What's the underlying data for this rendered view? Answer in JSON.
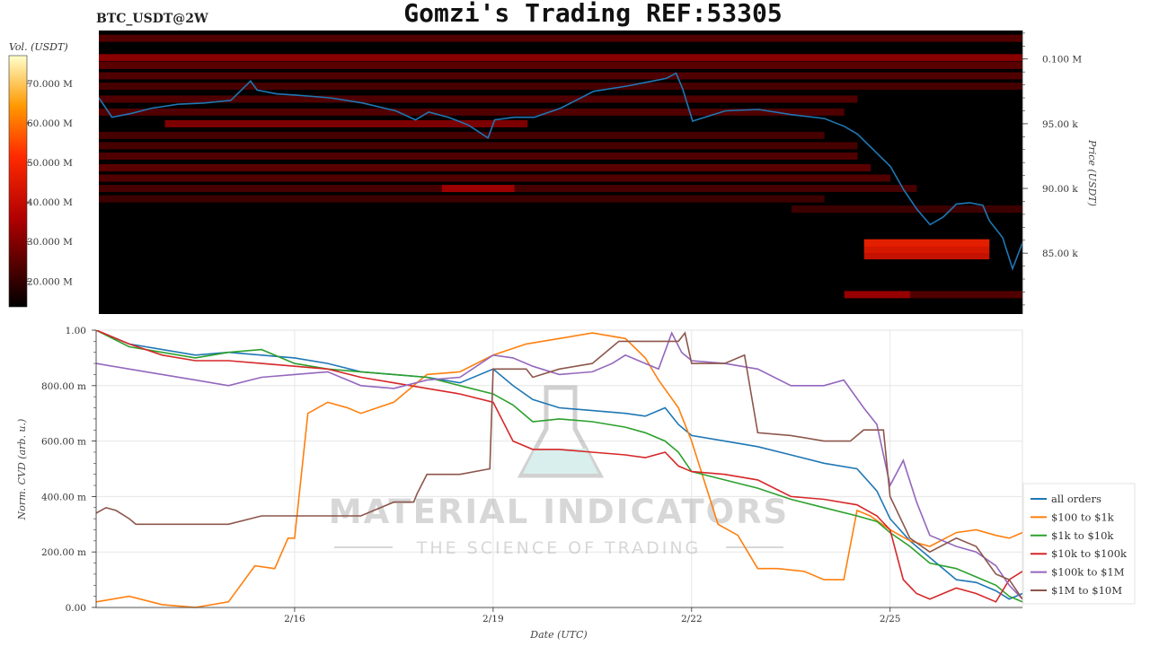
{
  "header": {
    "symbol": "BTC_USDT@2W",
    "title": "Gomzi's Trading REF:53305"
  },
  "watermark": {
    "line1": "MATERIAL INDICATORS",
    "line2": "THE SCIENCE OF TRADING"
  },
  "colors": {
    "price_line": "#1f77b4",
    "all_orders": "#1f77b4",
    "usd100_1k": "#ff7f0e",
    "usd1k_10k": "#2ca02c",
    "usd10k_100k": "#d62728",
    "usd100k_1m": "#9467bd",
    "usd1m_10m": "#8c564b",
    "heatmap_background": "#000000"
  },
  "chart_data": [
    {
      "type": "heatmap",
      "ylabel": "Price (USDT)",
      "y_ticks": [
        {
          "value": 100000,
          "label": "0.100 M"
        },
        {
          "value": 95000,
          "label": "95.00 k"
        },
        {
          "value": 90000,
          "label": "90.00 k"
        },
        {
          "value": 85000,
          "label": "85.00 k"
        }
      ],
      "ylim": [
        80300,
        102200
      ],
      "colorbar": {
        "label": "Vol. (USDT)",
        "ticks": [
          "70.000 M",
          "60.000 M",
          "50.000 M",
          "40.000 M",
          "30.000 M",
          "20.000 M"
        ],
        "tick_values": [
          70,
          60,
          50,
          40,
          30,
          20
        ],
        "range": [
          13.5,
          77
        ]
      },
      "x_range_days": [
        13.0,
        27.0
      ],
      "price_series": {
        "name": "Price",
        "x": [
          13.0,
          13.2,
          13.5,
          13.8,
          14.2,
          14.6,
          15.0,
          15.3,
          15.4,
          15.7,
          16.0,
          16.5,
          17.0,
          17.5,
          17.8,
          18.0,
          18.3,
          18.6,
          18.9,
          19.0,
          19.3,
          19.6,
          20.0,
          20.5,
          21.0,
          21.3,
          21.6,
          21.75,
          21.85,
          22.0,
          22.5,
          23.0,
          23.5,
          24.0,
          24.3,
          24.5,
          24.7,
          25.0,
          25.2,
          25.4,
          25.6,
          25.8,
          26.0,
          26.2,
          26.4,
          26.5,
          26.7,
          26.85,
          27.0
        ],
        "y": [
          97000,
          95500,
          95800,
          96200,
          96500,
          96600,
          96800,
          98300,
          97600,
          97300,
          97200,
          97000,
          96600,
          96000,
          95300,
          95900,
          95500,
          94900,
          93900,
          95300,
          95500,
          95500,
          96200,
          97500,
          97900,
          98200,
          98500,
          98900,
          97700,
          95200,
          96000,
          96100,
          95700,
          95400,
          94800,
          94200,
          93200,
          91700,
          89900,
          88400,
          87200,
          87800,
          88800,
          88900,
          88700,
          87500,
          86200,
          83800,
          85800
        ]
      },
      "bands": [
        {
          "x0": 13.0,
          "x1": 27.0,
          "price": 100100,
          "intensity": 0.55
        },
        {
          "x0": 13.0,
          "x1": 27.0,
          "price": 101600,
          "intensity": 0.3
        },
        {
          "x0": 13.0,
          "x1": 27.0,
          "price": 99500,
          "intensity": 0.35
        },
        {
          "x0": 13.0,
          "x1": 27.0,
          "price": 98700,
          "intensity": 0.3
        },
        {
          "x0": 13.0,
          "x1": 27.0,
          "price": 97900,
          "intensity": 0.25
        },
        {
          "x0": 13.0,
          "x1": 24.5,
          "price": 96900,
          "intensity": 0.3
        },
        {
          "x0": 13.0,
          "x1": 24.3,
          "price": 95900,
          "intensity": 0.3
        },
        {
          "x0": 14.0,
          "x1": 19.5,
          "price": 95000,
          "intensity": 0.5
        },
        {
          "x0": 13.0,
          "x1": 24.0,
          "price": 94100,
          "intensity": 0.25
        },
        {
          "x0": 13.0,
          "x1": 24.5,
          "price": 93300,
          "intensity": 0.25
        },
        {
          "x0": 13.0,
          "x1": 24.5,
          "price": 92500,
          "intensity": 0.3
        },
        {
          "x0": 13.0,
          "x1": 24.7,
          "price": 91600,
          "intensity": 0.35
        },
        {
          "x0": 13.0,
          "x1": 25.0,
          "price": 90800,
          "intensity": 0.3
        },
        {
          "x0": 13.0,
          "x1": 25.4,
          "price": 90000,
          "intensity": 0.25
        },
        {
          "x0": 18.2,
          "x1": 19.3,
          "price": 90000,
          "intensity": 0.55
        },
        {
          "x0": 13.0,
          "x1": 24.0,
          "price": 89200,
          "intensity": 0.2
        },
        {
          "x0": 23.5,
          "x1": 27.0,
          "price": 88400,
          "intensity": 0.2
        },
        {
          "x0": 24.6,
          "x1": 26.5,
          "price": 85800,
          "intensity": 0.85
        },
        {
          "x0": 24.6,
          "x1": 26.5,
          "price": 85300,
          "intensity": 0.8
        },
        {
          "x0": 24.6,
          "x1": 26.5,
          "price": 84800,
          "intensity": 0.75
        },
        {
          "x0": 24.3,
          "x1": 25.3,
          "price": 81800,
          "intensity": 0.6
        },
        {
          "x0": 25.3,
          "x1": 27.0,
          "price": 81800,
          "intensity": 0.3
        }
      ]
    },
    {
      "type": "line",
      "xlabel": "Date (UTC)",
      "ylabel": "Norm. CVD (arb. u.)",
      "ylim": [
        0,
        1
      ],
      "y_ticks": [
        {
          "value": 1.0,
          "label": "1.00"
        },
        {
          "value": 0.8,
          "label": "800.00 m"
        },
        {
          "value": 0.6,
          "label": "600.00 m"
        },
        {
          "value": 0.4,
          "label": "400.00 m"
        },
        {
          "value": 0.2,
          "label": "200.00 m"
        },
        {
          "value": 0.0,
          "label": "0.00"
        }
      ],
      "x_range_days": [
        13.0,
        27.0
      ],
      "x_ticks": [
        {
          "value": 16,
          "label": "2/16"
        },
        {
          "value": 19,
          "label": "2/19"
        },
        {
          "value": 22,
          "label": "2/22"
        },
        {
          "value": 25,
          "label": "2/25"
        }
      ],
      "grid": true,
      "legend_position": "right",
      "series": [
        {
          "name": "all orders",
          "color_key": "all_orders",
          "x": [
            13.0,
            13.5,
            14.0,
            14.5,
            15.0,
            15.5,
            16.0,
            16.5,
            17.0,
            17.5,
            18.0,
            18.5,
            19.0,
            19.3,
            19.6,
            20.0,
            20.5,
            21.0,
            21.3,
            21.6,
            21.8,
            22.0,
            22.5,
            23.0,
            23.5,
            24.0,
            24.5,
            24.8,
            25.0,
            25.3,
            25.6,
            26.0,
            26.3,
            26.6,
            26.8,
            27.0
          ],
          "y": [
            1.0,
            0.95,
            0.93,
            0.91,
            0.92,
            0.91,
            0.9,
            0.88,
            0.85,
            0.84,
            0.83,
            0.81,
            0.86,
            0.8,
            0.75,
            0.72,
            0.71,
            0.7,
            0.69,
            0.72,
            0.66,
            0.62,
            0.6,
            0.58,
            0.55,
            0.52,
            0.5,
            0.42,
            0.32,
            0.24,
            0.18,
            0.1,
            0.09,
            0.06,
            0.03,
            0.05
          ]
        },
        {
          "name": "$100 to $1k",
          "color_key": "usd100_1k",
          "x": [
            13.0,
            13.5,
            14.0,
            14.5,
            15.0,
            15.4,
            15.7,
            15.9,
            16.0,
            16.2,
            16.5,
            16.8,
            17.0,
            17.5,
            18.0,
            18.5,
            19.0,
            19.5,
            20.0,
            20.5,
            21.0,
            21.3,
            21.5,
            21.8,
            22.0,
            22.2,
            22.4,
            22.7,
            23.0,
            23.3,
            23.7,
            24.0,
            24.3,
            24.5,
            24.7,
            25.0,
            25.3,
            25.6,
            26.0,
            26.3,
            26.6,
            26.8,
            27.0
          ],
          "y": [
            0.02,
            0.04,
            0.01,
            0.0,
            0.02,
            0.15,
            0.14,
            0.25,
            0.25,
            0.7,
            0.74,
            0.72,
            0.7,
            0.74,
            0.84,
            0.85,
            0.91,
            0.95,
            0.97,
            0.99,
            0.97,
            0.9,
            0.82,
            0.72,
            0.6,
            0.45,
            0.3,
            0.26,
            0.14,
            0.14,
            0.13,
            0.1,
            0.1,
            0.35,
            0.33,
            0.28,
            0.24,
            0.22,
            0.27,
            0.28,
            0.26,
            0.25,
            0.27
          ]
        },
        {
          "name": "$1k to $10k",
          "color_key": "usd1k_10k",
          "x": [
            13.0,
            13.5,
            14.0,
            14.5,
            15.0,
            15.5,
            16.0,
            16.5,
            17.0,
            17.5,
            18.0,
            18.5,
            19.0,
            19.3,
            19.6,
            20.0,
            20.5,
            21.0,
            21.3,
            21.6,
            21.8,
            22.0,
            22.5,
            23.0,
            23.5,
            24.0,
            24.5,
            24.8,
            25.0,
            25.3,
            25.6,
            26.0,
            26.3,
            26.6,
            26.8,
            27.0
          ],
          "y": [
            1.0,
            0.94,
            0.92,
            0.9,
            0.92,
            0.93,
            0.88,
            0.86,
            0.85,
            0.84,
            0.83,
            0.8,
            0.77,
            0.73,
            0.67,
            0.68,
            0.67,
            0.65,
            0.63,
            0.6,
            0.56,
            0.49,
            0.46,
            0.43,
            0.39,
            0.36,
            0.33,
            0.31,
            0.27,
            0.22,
            0.16,
            0.14,
            0.11,
            0.08,
            0.04,
            0.02
          ]
        },
        {
          "name": "$10k to $100k",
          "color_key": "usd10k_100k",
          "x": [
            13.0,
            13.5,
            14.0,
            14.5,
            15.0,
            15.5,
            16.0,
            16.5,
            17.0,
            17.5,
            18.0,
            18.5,
            19.0,
            19.3,
            19.6,
            20.0,
            20.5,
            21.0,
            21.3,
            21.6,
            21.8,
            22.0,
            22.5,
            23.0,
            23.5,
            24.0,
            24.5,
            24.8,
            25.0,
            25.2,
            25.4,
            25.6,
            26.0,
            26.3,
            26.6,
            26.8,
            27.0
          ],
          "y": [
            1.0,
            0.95,
            0.91,
            0.89,
            0.89,
            0.88,
            0.87,
            0.86,
            0.83,
            0.81,
            0.79,
            0.77,
            0.74,
            0.6,
            0.57,
            0.57,
            0.56,
            0.55,
            0.54,
            0.56,
            0.51,
            0.49,
            0.48,
            0.46,
            0.4,
            0.39,
            0.37,
            0.33,
            0.28,
            0.1,
            0.05,
            0.03,
            0.07,
            0.05,
            0.02,
            0.1,
            0.13
          ]
        },
        {
          "name": "$100k to $1M",
          "color_key": "usd100k_1m",
          "x": [
            13.0,
            13.5,
            14.0,
            14.5,
            15.0,
            15.5,
            16.0,
            16.5,
            17.0,
            17.5,
            18.0,
            18.5,
            19.0,
            19.3,
            19.6,
            20.0,
            20.5,
            20.8,
            21.0,
            21.3,
            21.5,
            21.7,
            21.85,
            22.0,
            22.5,
            23.0,
            23.5,
            24.0,
            24.3,
            24.6,
            24.8,
            25.0,
            25.2,
            25.4,
            25.6,
            26.0,
            26.3,
            26.6,
            26.8,
            27.0
          ],
          "y": [
            0.88,
            0.86,
            0.84,
            0.82,
            0.8,
            0.83,
            0.84,
            0.85,
            0.8,
            0.79,
            0.82,
            0.83,
            0.91,
            0.9,
            0.87,
            0.84,
            0.85,
            0.88,
            0.91,
            0.88,
            0.86,
            0.99,
            0.92,
            0.89,
            0.88,
            0.86,
            0.8,
            0.8,
            0.82,
            0.72,
            0.66,
            0.44,
            0.53,
            0.38,
            0.26,
            0.22,
            0.2,
            0.15,
            0.08,
            0.03
          ]
        },
        {
          "name": "$1M to $10M",
          "color_key": "usd1m_10m",
          "x": [
            13.0,
            13.15,
            13.3,
            13.5,
            13.6,
            14.0,
            14.5,
            15.0,
            15.5,
            15.6,
            16.0,
            16.5,
            17.0,
            17.5,
            17.6,
            17.8,
            17.85,
            18.0,
            18.5,
            18.95,
            19.0,
            19.5,
            19.6,
            20.0,
            20.5,
            20.9,
            21.0,
            21.5,
            21.8,
            21.9,
            22.0,
            22.5,
            22.8,
            23.0,
            23.5,
            24.0,
            24.4,
            24.6,
            24.9,
            25.0,
            25.3,
            25.6,
            26.0,
            26.3,
            26.6,
            26.8,
            27.0
          ],
          "y": [
            0.34,
            0.36,
            0.35,
            0.32,
            0.3,
            0.3,
            0.3,
            0.3,
            0.33,
            0.33,
            0.33,
            0.33,
            0.33,
            0.38,
            0.38,
            0.38,
            0.41,
            0.48,
            0.48,
            0.5,
            0.86,
            0.86,
            0.83,
            0.86,
            0.88,
            0.96,
            0.96,
            0.96,
            0.96,
            0.99,
            0.88,
            0.88,
            0.91,
            0.63,
            0.62,
            0.6,
            0.6,
            0.64,
            0.64,
            0.4,
            0.25,
            0.2,
            0.25,
            0.22,
            0.12,
            0.1,
            0.03
          ]
        }
      ]
    }
  ]
}
